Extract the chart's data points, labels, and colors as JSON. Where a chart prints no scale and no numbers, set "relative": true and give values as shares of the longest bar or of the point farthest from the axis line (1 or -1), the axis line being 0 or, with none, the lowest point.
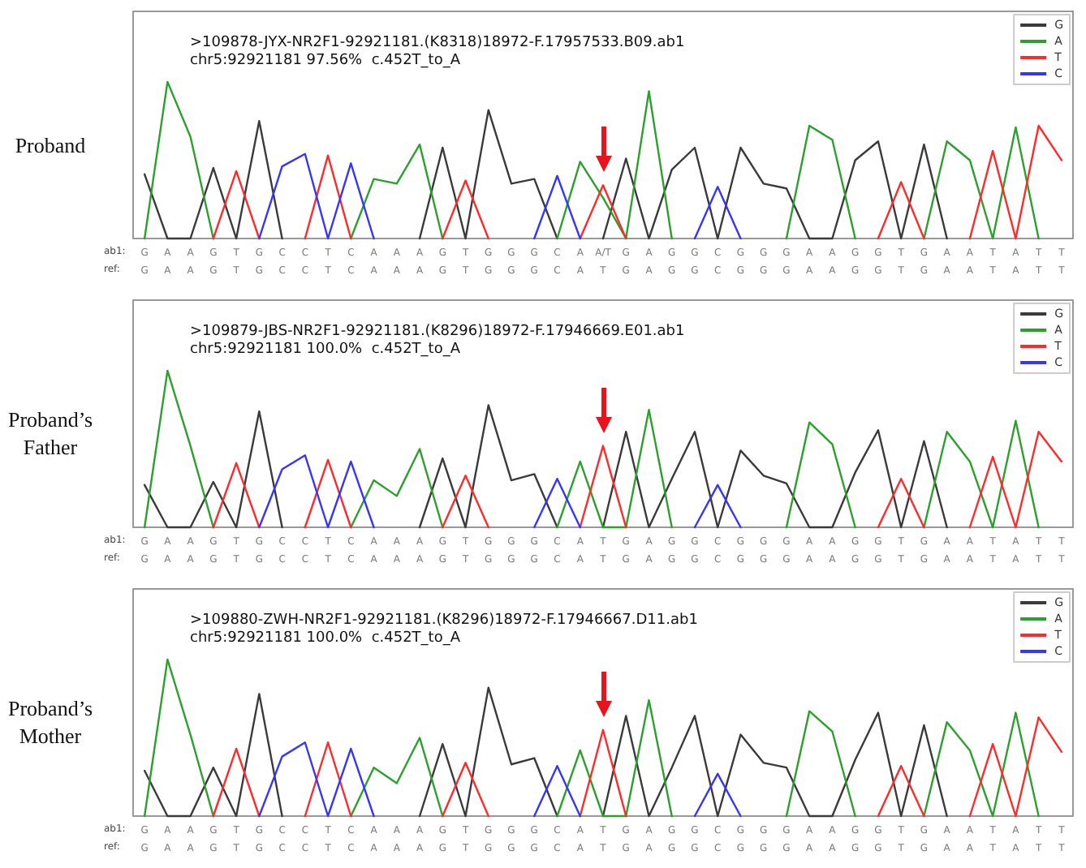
{
  "chart_data": [
    {
      "type": "line",
      "relative": true,
      "title": ">109878-JYX-NR2F1-92921181.(K8318)18972-F.17957533.B09.ab1",
      "subtitle": "chr5:92921181 97.56%  c.452T_to_A",
      "ylabel": "Proband",
      "xlabel": "ab1:",
      "legend": "top right",
      "categories": [
        "G",
        "A",
        "A",
        "G",
        "T",
        "G",
        "C",
        "C",
        "T",
        "C",
        "A",
        "A",
        "A",
        "G",
        "T",
        "G",
        "G",
        "G",
        "C",
        "A",
        "A/T",
        "G",
        "A",
        "G",
        "G",
        "C",
        "G",
        "G",
        "G",
        "A",
        "A",
        "G",
        "G",
        "T",
        "G",
        "A",
        "A",
        "T",
        "A",
        "T",
        "T"
      ],
      "annotations": [
        "ref: G A A G T G C C T C A A A G T G G G C A T G A G G C G G G A A G G T G A A T A T T"
      ],
      "series": [
        {
          "name": "G",
          "color": "#3a3a3a",
          "values": [
            0.41,
            0,
            0,
            0.45,
            0,
            0.75,
            0,
            null,
            null,
            null,
            null,
            null,
            0,
            0.58,
            0,
            0.82,
            0.35,
            0.38,
            0,
            null,
            0,
            0.51,
            0,
            0.44,
            0.58,
            0,
            0.58,
            0.35,
            0.32,
            0,
            0,
            0.5,
            0.62,
            0,
            0.6,
            0,
            null,
            null,
            null,
            null,
            null
          ]
        },
        {
          "name": "A",
          "color": "#2ca02c",
          "values": [
            0,
            1,
            0.65,
            0,
            null,
            null,
            null,
            null,
            null,
            0,
            0.38,
            0.35,
            0.6,
            0,
            null,
            null,
            null,
            null,
            0,
            0.49,
            0.26,
            0,
            0.94,
            0,
            null,
            null,
            null,
            null,
            0,
            0.72,
            0.63,
            0,
            null,
            null,
            0,
            0.62,
            0.5,
            0,
            0.71,
            0,
            null
          ]
        },
        {
          "name": "T",
          "color": "#ff2a2a",
          "values": [
            null,
            null,
            null,
            0,
            0.43,
            0,
            null,
            0,
            0.53,
            0,
            null,
            null,
            null,
            0,
            0.37,
            0,
            null,
            null,
            null,
            0,
            0.34,
            0,
            null,
            null,
            null,
            null,
            null,
            null,
            null,
            null,
            null,
            null,
            0,
            0.36,
            0,
            null,
            0,
            0.56,
            0,
            0.72,
            0.5
          ]
        },
        {
          "name": "C",
          "color": "#3535ff",
          "values": [
            null,
            null,
            null,
            null,
            null,
            0,
            0.46,
            0.54,
            0,
            0.48,
            0,
            null,
            null,
            null,
            null,
            null,
            null,
            0,
            0.4,
            0,
            null,
            null,
            null,
            null,
            0,
            0.33,
            0,
            null,
            null,
            null,
            null,
            null,
            null,
            null,
            null,
            null,
            null,
            null,
            null,
            null,
            null
          ]
        }
      ]
    },
    {
      "type": "line",
      "relative": true,
      "title": ">109879-JBS-NR2F1-92921181.(K8296)18972-F.17946669.E01.ab1",
      "subtitle": "chr5:92921181 100.0%  c.452T_to_A",
      "ylabel": "Proband’s Father",
      "xlabel": "ab1:",
      "legend": "top right",
      "categories": [
        "G",
        "A",
        "A",
        "G",
        "T",
        "G",
        "C",
        "C",
        "T",
        "C",
        "A",
        "A",
        "A",
        "G",
        "T",
        "G",
        "G",
        "G",
        "C",
        "A",
        "T",
        "G",
        "A",
        "G",
        "G",
        "C",
        "G",
        "G",
        "G",
        "A",
        "A",
        "G",
        "G",
        "T",
        "G",
        "A",
        "A",
        "T",
        "A",
        "T",
        "T"
      ],
      "annotations": [
        "ref: G A A G T G C C T C A A A G T G G G C A T G A G G C G G G A A G G T G A A T A T T"
      ],
      "series": [
        {
          "name": "G",
          "color": "#3a3a3a",
          "values": [
            0.27,
            0,
            0,
            0.29,
            0,
            0.74,
            0,
            null,
            null,
            null,
            null,
            null,
            0,
            0.44,
            0,
            0.78,
            0.3,
            0.34,
            0,
            null,
            0,
            0.61,
            0,
            0.31,
            0.61,
            0,
            0.49,
            0.33,
            0.28,
            0,
            0,
            0.35,
            0.62,
            0,
            0.55,
            0,
            null,
            null,
            null,
            null,
            null
          ]
        },
        {
          "name": "A",
          "color": "#2ca02c",
          "values": [
            0,
            1,
            0.52,
            0,
            null,
            null,
            null,
            null,
            null,
            0,
            0.3,
            0.2,
            0.5,
            0,
            null,
            null,
            null,
            null,
            0,
            0.42,
            0,
            0,
            0.75,
            0,
            null,
            null,
            null,
            null,
            0,
            0.67,
            0.53,
            0,
            null,
            null,
            0,
            0.61,
            0.42,
            0,
            0.68,
            0,
            null
          ]
        },
        {
          "name": "T",
          "color": "#ff2a2a",
          "values": [
            null,
            null,
            null,
            0,
            0.41,
            0,
            null,
            0,
            0.43,
            0,
            null,
            null,
            null,
            0,
            0.33,
            0,
            null,
            null,
            null,
            0,
            0.52,
            0,
            null,
            null,
            null,
            null,
            null,
            null,
            null,
            null,
            null,
            null,
            0,
            0.31,
            0,
            null,
            0,
            0.45,
            0,
            0.61,
            0.42
          ]
        },
        {
          "name": "C",
          "color": "#3535ff",
          "values": [
            null,
            null,
            null,
            null,
            null,
            0,
            0.37,
            0.46,
            0,
            0.42,
            0,
            null,
            null,
            null,
            null,
            null,
            null,
            0,
            0.31,
            0,
            null,
            null,
            null,
            null,
            0,
            0.27,
            0,
            null,
            null,
            null,
            null,
            null,
            null,
            null,
            null,
            null,
            null,
            null,
            null,
            null,
            null
          ]
        }
      ]
    },
    {
      "type": "line",
      "relative": true,
      "title": ">109880-ZWH-NR2F1-92921181.(K8296)18972-F.17946667.D11.ab1",
      "subtitle": "chr5:92921181 100.0%  c.452T_to_A",
      "ylabel": "Proband’s Mother",
      "xlabel": "ab1:",
      "legend": "top right",
      "categories": [
        "G",
        "A",
        "A",
        "G",
        "T",
        "G",
        "C",
        "C",
        "T",
        "C",
        "A",
        "A",
        "A",
        "G",
        "T",
        "G",
        "G",
        "G",
        "C",
        "A",
        "T",
        "G",
        "A",
        "G",
        "G",
        "C",
        "G",
        "G",
        "G",
        "A",
        "A",
        "G",
        "G",
        "T",
        "G",
        "A",
        "A",
        "T",
        "A",
        "T",
        "T"
      ],
      "annotations": [
        "ref: G A A G T G C C T C A A A G T G G G C A T G A G G C G G G A A G G T G A A T A T T"
      ],
      "series": [
        {
          "name": "G",
          "color": "#3a3a3a",
          "values": [
            0.29,
            0,
            0,
            0.31,
            0,
            0.78,
            0,
            null,
            null,
            null,
            null,
            null,
            0,
            0.46,
            0,
            0.82,
            0.33,
            0.37,
            0,
            null,
            0,
            0.64,
            0,
            0.31,
            0.64,
            0,
            0.52,
            0.34,
            0.31,
            0,
            0,
            0.36,
            0.66,
            0,
            0.58,
            0,
            null,
            null,
            null,
            null,
            null
          ]
        },
        {
          "name": "A",
          "color": "#2ca02c",
          "values": [
            0,
            1,
            0.52,
            0,
            null,
            null,
            null,
            null,
            null,
            0,
            0.31,
            0.21,
            0.5,
            0,
            null,
            null,
            null,
            null,
            0,
            0.42,
            0,
            0,
            0.74,
            0,
            null,
            null,
            null,
            null,
            0,
            0.67,
            0.54,
            0,
            null,
            null,
            0,
            0.6,
            0.42,
            0,
            0.66,
            0,
            null
          ]
        },
        {
          "name": "T",
          "color": "#ff2a2a",
          "values": [
            null,
            null,
            null,
            0,
            0.43,
            0,
            null,
            0,
            0.47,
            0,
            null,
            null,
            null,
            0,
            0.34,
            0,
            null,
            null,
            null,
            0,
            0.55,
            0,
            null,
            null,
            null,
            null,
            null,
            null,
            null,
            null,
            null,
            null,
            0,
            0.32,
            0,
            null,
            0,
            0.46,
            0,
            0.63,
            0.41
          ]
        },
        {
          "name": "C",
          "color": "#3535ff",
          "values": [
            null,
            null,
            null,
            null,
            null,
            0,
            0.38,
            0.47,
            0,
            0.43,
            0,
            null,
            null,
            null,
            null,
            null,
            null,
            0,
            0.32,
            0,
            null,
            null,
            null,
            null,
            0,
            0.27,
            0,
            null,
            null,
            null,
            null,
            null,
            null,
            null,
            null,
            null,
            null,
            null,
            null,
            null,
            null
          ]
        }
      ]
    }
  ]
}
